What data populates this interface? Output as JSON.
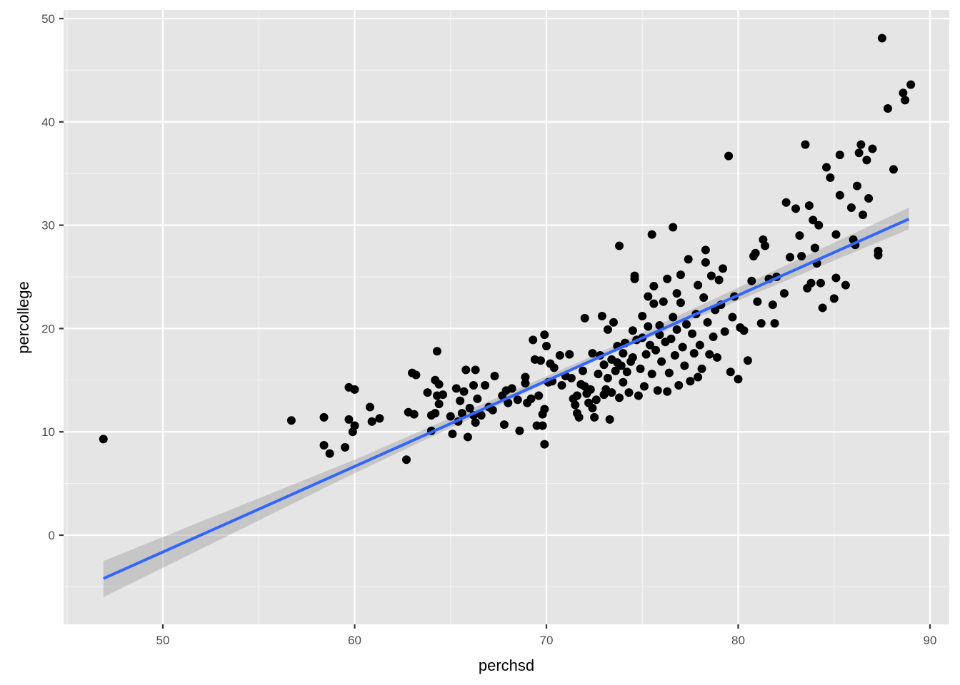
{
  "chart_data": {
    "type": "scatter",
    "title": "",
    "xlabel": "perchsd",
    "ylabel": "percollege",
    "xlim": [
      44.9,
      91.0
    ],
    "ylim": [
      -8.6,
      50.8
    ],
    "x_ticks": [
      50,
      60,
      70,
      80,
      90
    ],
    "y_ticks": [
      0,
      10,
      20,
      30,
      40,
      50
    ],
    "grid": true,
    "legend": null,
    "colors": {
      "panel_background": "#e5e5e5",
      "grid_major": "#ffffff",
      "points": "#000000",
      "smooth_line": "#3366ff",
      "ribbon": "#999999"
    },
    "smooth": {
      "method": "lm",
      "line": [
        {
          "x": 46.9,
          "y": -4.2
        },
        {
          "x": 88.9,
          "y": 30.6
        }
      ],
      "ribbon_lower": [
        {
          "x": 46.9,
          "y": -6.0
        },
        {
          "x": 60.0,
          "y": 6.0
        },
        {
          "x": 72.0,
          "y": 16.5
        },
        {
          "x": 88.9,
          "y": 29.6
        }
      ],
      "ribbon_upper": [
        {
          "x": 46.9,
          "y": -2.5
        },
        {
          "x": 60.0,
          "y": 7.3
        },
        {
          "x": 72.0,
          "y": 17.0
        },
        {
          "x": 88.9,
          "y": 31.7
        }
      ]
    },
    "points": [
      [
        46.9,
        9.3
      ],
      [
        56.7,
        11.1
      ],
      [
        58.4,
        11.4
      ],
      [
        58.4,
        8.7
      ],
      [
        58.7,
        7.9
      ],
      [
        59.5,
        8.5
      ],
      [
        59.7,
        11.2
      ],
      [
        59.7,
        14.3
      ],
      [
        59.9,
        10.0
      ],
      [
        60.0,
        10.6
      ],
      [
        60.0,
        14.1
      ],
      [
        60.8,
        12.4
      ],
      [
        60.9,
        11.0
      ],
      [
        61.3,
        11.3
      ],
      [
        62.7,
        7.3
      ],
      [
        62.8,
        11.9
      ],
      [
        63.0,
        15.7
      ],
      [
        63.1,
        11.7
      ],
      [
        63.2,
        15.5
      ],
      [
        63.8,
        13.8
      ],
      [
        64.0,
        11.6
      ],
      [
        64.0,
        10.1
      ],
      [
        64.2,
        11.8
      ],
      [
        64.2,
        15.0
      ],
      [
        64.3,
        13.5
      ],
      [
        64.3,
        17.8
      ],
      [
        64.4,
        12.7
      ],
      [
        64.4,
        14.6
      ],
      [
        64.6,
        13.6
      ],
      [
        65.0,
        11.5
      ],
      [
        65.1,
        9.8
      ],
      [
        65.3,
        14.2
      ],
      [
        65.4,
        11.0
      ],
      [
        65.5,
        13.0
      ],
      [
        65.6,
        11.8
      ],
      [
        65.7,
        13.9
      ],
      [
        65.8,
        16.0
      ],
      [
        65.9,
        9.5
      ],
      [
        66.0,
        12.3
      ],
      [
        66.2,
        11.6
      ],
      [
        66.2,
        14.5
      ],
      [
        66.3,
        10.9
      ],
      [
        66.3,
        16.0
      ],
      [
        66.4,
        13.2
      ],
      [
        66.6,
        11.6
      ],
      [
        66.8,
        14.5
      ],
      [
        67.0,
        12.4
      ],
      [
        67.2,
        12.1
      ],
      [
        67.3,
        15.4
      ],
      [
        67.7,
        13.5
      ],
      [
        67.8,
        10.7
      ],
      [
        67.9,
        14.0
      ],
      [
        68.0,
        12.8
      ],
      [
        68.2,
        14.2
      ],
      [
        68.5,
        13.1
      ],
      [
        68.6,
        10.1
      ],
      [
        68.9,
        15.3
      ],
      [
        68.9,
        14.7
      ],
      [
        69.0,
        12.8
      ],
      [
        69.2,
        13.2
      ],
      [
        69.3,
        18.9
      ],
      [
        69.4,
        17.0
      ],
      [
        69.5,
        10.6
      ],
      [
        69.6,
        13.5
      ],
      [
        69.7,
        16.9
      ],
      [
        69.8,
        10.6
      ],
      [
        69.8,
        11.7
      ],
      [
        69.9,
        8.8
      ],
      [
        69.9,
        19.4
      ],
      [
        69.9,
        12.2
      ],
      [
        70.0,
        18.3
      ],
      [
        70.1,
        14.8
      ],
      [
        70.2,
        16.6
      ],
      [
        70.3,
        14.9
      ],
      [
        70.4,
        16.2
      ],
      [
        70.7,
        17.4
      ],
      [
        70.8,
        14.5
      ],
      [
        71.0,
        15.4
      ],
      [
        71.2,
        17.5
      ],
      [
        71.3,
        15.2
      ],
      [
        71.4,
        13.2
      ],
      [
        71.5,
        12.6
      ],
      [
        71.6,
        11.8
      ],
      [
        71.6,
        13.5
      ],
      [
        71.7,
        11.4
      ],
      [
        71.8,
        14.6
      ],
      [
        71.9,
        15.9
      ],
      [
        72.0,
        21.0
      ],
      [
        72.0,
        14.4
      ],
      [
        72.1,
        13.7
      ],
      [
        72.2,
        12.8
      ],
      [
        72.3,
        14.1
      ],
      [
        72.4,
        17.6
      ],
      [
        72.4,
        12.3
      ],
      [
        72.5,
        11.4
      ],
      [
        72.6,
        13.1
      ],
      [
        72.7,
        15.6
      ],
      [
        72.8,
        17.4
      ],
      [
        72.9,
        21.2
      ],
      [
        73.0,
        16.5
      ],
      [
        73.0,
        13.6
      ],
      [
        73.1,
        14.1
      ],
      [
        73.2,
        19.9
      ],
      [
        73.2,
        15.2
      ],
      [
        73.3,
        11.2
      ],
      [
        73.4,
        17.0
      ],
      [
        73.4,
        13.8
      ],
      [
        73.5,
        20.6
      ],
      [
        73.6,
        15.9
      ],
      [
        73.7,
        18.3
      ],
      [
        73.7,
        16.7
      ],
      [
        73.8,
        28.0
      ],
      [
        73.8,
        13.3
      ],
      [
        73.9,
        16.4
      ],
      [
        74.0,
        17.6
      ],
      [
        74.0,
        14.8
      ],
      [
        74.1,
        18.6
      ],
      [
        74.2,
        15.8
      ],
      [
        74.3,
        13.8
      ],
      [
        74.4,
        16.8
      ],
      [
        74.5,
        19.8
      ],
      [
        74.5,
        17.2
      ],
      [
        74.6,
        24.8
      ],
      [
        74.6,
        25.1
      ],
      [
        74.7,
        18.9
      ],
      [
        74.8,
        13.5
      ],
      [
        74.9,
        16.1
      ],
      [
        75.0,
        21.2
      ],
      [
        75.0,
        19.1
      ],
      [
        75.1,
        14.4
      ],
      [
        75.2,
        17.5
      ],
      [
        75.3,
        20.2
      ],
      [
        75.3,
        23.1
      ],
      [
        75.4,
        18.4
      ],
      [
        75.5,
        15.6
      ],
      [
        75.5,
        29.1
      ],
      [
        75.6,
        24.1
      ],
      [
        75.6,
        22.4
      ],
      [
        75.7,
        17.9
      ],
      [
        75.8,
        14.0
      ],
      [
        75.9,
        19.4
      ],
      [
        75.9,
        20.3
      ],
      [
        76.0,
        16.8
      ],
      [
        76.1,
        22.6
      ],
      [
        76.2,
        18.7
      ],
      [
        76.3,
        24.8
      ],
      [
        76.3,
        13.9
      ],
      [
        76.4,
        15.7
      ],
      [
        76.5,
        19.0
      ],
      [
        76.6,
        29.8
      ],
      [
        76.6,
        21.1
      ],
      [
        76.7,
        17.4
      ],
      [
        76.8,
        23.4
      ],
      [
        76.8,
        19.9
      ],
      [
        76.9,
        14.5
      ],
      [
        77.0,
        25.2
      ],
      [
        77.0,
        22.5
      ],
      [
        77.1,
        18.2
      ],
      [
        77.2,
        16.4
      ],
      [
        77.3,
        20.4
      ],
      [
        77.4,
        26.7
      ],
      [
        77.5,
        14.9
      ],
      [
        77.6,
        19.5
      ],
      [
        77.7,
        17.6
      ],
      [
        77.8,
        21.4
      ],
      [
        77.9,
        15.3
      ],
      [
        77.9,
        24.2
      ],
      [
        78.0,
        18.4
      ],
      [
        78.1,
        16.1
      ],
      [
        78.2,
        23.0
      ],
      [
        78.3,
        27.6
      ],
      [
        78.3,
        26.4
      ],
      [
        78.4,
        20.6
      ],
      [
        78.5,
        17.5
      ],
      [
        78.6,
        25.1
      ],
      [
        78.7,
        19.2
      ],
      [
        78.8,
        21.8
      ],
      [
        78.9,
        17.2
      ],
      [
        79.0,
        24.7
      ],
      [
        79.1,
        22.3
      ],
      [
        79.2,
        25.8
      ],
      [
        79.3,
        19.7
      ],
      [
        79.5,
        36.7
      ],
      [
        79.6,
        15.8
      ],
      [
        79.7,
        21.1
      ],
      [
        79.8,
        23.1
      ],
      [
        80.0,
        15.1
      ],
      [
        80.1,
        20.1
      ],
      [
        80.3,
        19.8
      ],
      [
        80.5,
        16.9
      ],
      [
        80.7,
        24.6
      ],
      [
        80.8,
        27.0
      ],
      [
        80.9,
        27.3
      ],
      [
        81.0,
        22.6
      ],
      [
        81.2,
        20.5
      ],
      [
        81.3,
        28.6
      ],
      [
        81.4,
        28.0
      ],
      [
        81.6,
        24.8
      ],
      [
        81.8,
        22.3
      ],
      [
        81.9,
        20.5
      ],
      [
        82.0,
        25.0
      ],
      [
        82.4,
        23.4
      ],
      [
        82.5,
        32.2
      ],
      [
        82.7,
        26.9
      ],
      [
        83.0,
        31.6
      ],
      [
        83.2,
        29.0
      ],
      [
        83.3,
        27.0
      ],
      [
        83.5,
        37.8
      ],
      [
        83.6,
        23.9
      ],
      [
        83.7,
        31.9
      ],
      [
        83.8,
        24.4
      ],
      [
        83.9,
        30.5
      ],
      [
        84.0,
        27.8
      ],
      [
        84.1,
        26.3
      ],
      [
        84.2,
        30.0
      ],
      [
        84.3,
        24.4
      ],
      [
        84.4,
        22.0
      ],
      [
        84.6,
        35.6
      ],
      [
        84.8,
        34.6
      ],
      [
        85.0,
        22.9
      ],
      [
        85.1,
        24.9
      ],
      [
        85.1,
        29.1
      ],
      [
        85.3,
        36.8
      ],
      [
        85.3,
        32.9
      ],
      [
        85.6,
        24.2
      ],
      [
        85.9,
        31.7
      ],
      [
        86.0,
        28.6
      ],
      [
        86.1,
        28.1
      ],
      [
        86.2,
        33.8
      ],
      [
        86.3,
        37.0
      ],
      [
        86.4,
        37.8
      ],
      [
        86.5,
        31.0
      ],
      [
        86.7,
        36.3
      ],
      [
        86.8,
        32.6
      ],
      [
        87.3,
        27.1
      ],
      [
        87.3,
        27.5
      ],
      [
        87.0,
        37.4
      ],
      [
        87.5,
        48.1
      ],
      [
        87.8,
        41.3
      ],
      [
        88.1,
        35.4
      ],
      [
        88.6,
        42.8
      ],
      [
        88.7,
        42.1
      ],
      [
        89.0,
        43.6
      ]
    ]
  }
}
